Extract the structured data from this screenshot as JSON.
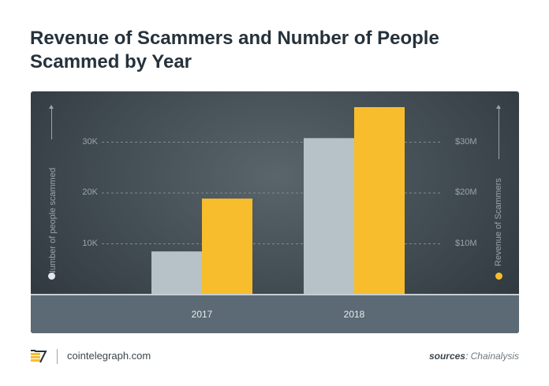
{
  "title": "Revenue of Scammers and Number of People Scammed by Year",
  "chart_data": {
    "type": "bar",
    "categories": [
      "2017",
      "2018"
    ],
    "series": [
      {
        "name": "Number of people scammed",
        "axis": "left",
        "color": "#b7c2c8",
        "values": [
          8500,
          30800
        ]
      },
      {
        "name": "Revenue of Scammers",
        "axis": "right",
        "unit": "$M",
        "color": "#f7bd2c",
        "values": [
          18.9,
          36.9
        ]
      }
    ],
    "y_left": {
      "label": "Number of people scammed",
      "ticks": [
        "10K",
        "20K",
        "30K"
      ],
      "tick_values": [
        10000,
        20000,
        30000
      ],
      "ylim": [
        0,
        36666
      ]
    },
    "y_right": {
      "label": "Revenue of Scammers",
      "ticks": [
        "$10M",
        "$20M",
        "$30M"
      ],
      "tick_values": [
        10,
        20,
        30
      ],
      "ylim": [
        0,
        36.666
      ]
    },
    "grid": "dashed horizontal at ticks",
    "legend": "colored dots below each axis title"
  },
  "footer": {
    "brand_icon": "cointelegraph-logo-icon",
    "site": "cointelegraph.com",
    "sources_label": "sources",
    "sources_sep": ": ",
    "sources_name": "Chainalysis"
  }
}
